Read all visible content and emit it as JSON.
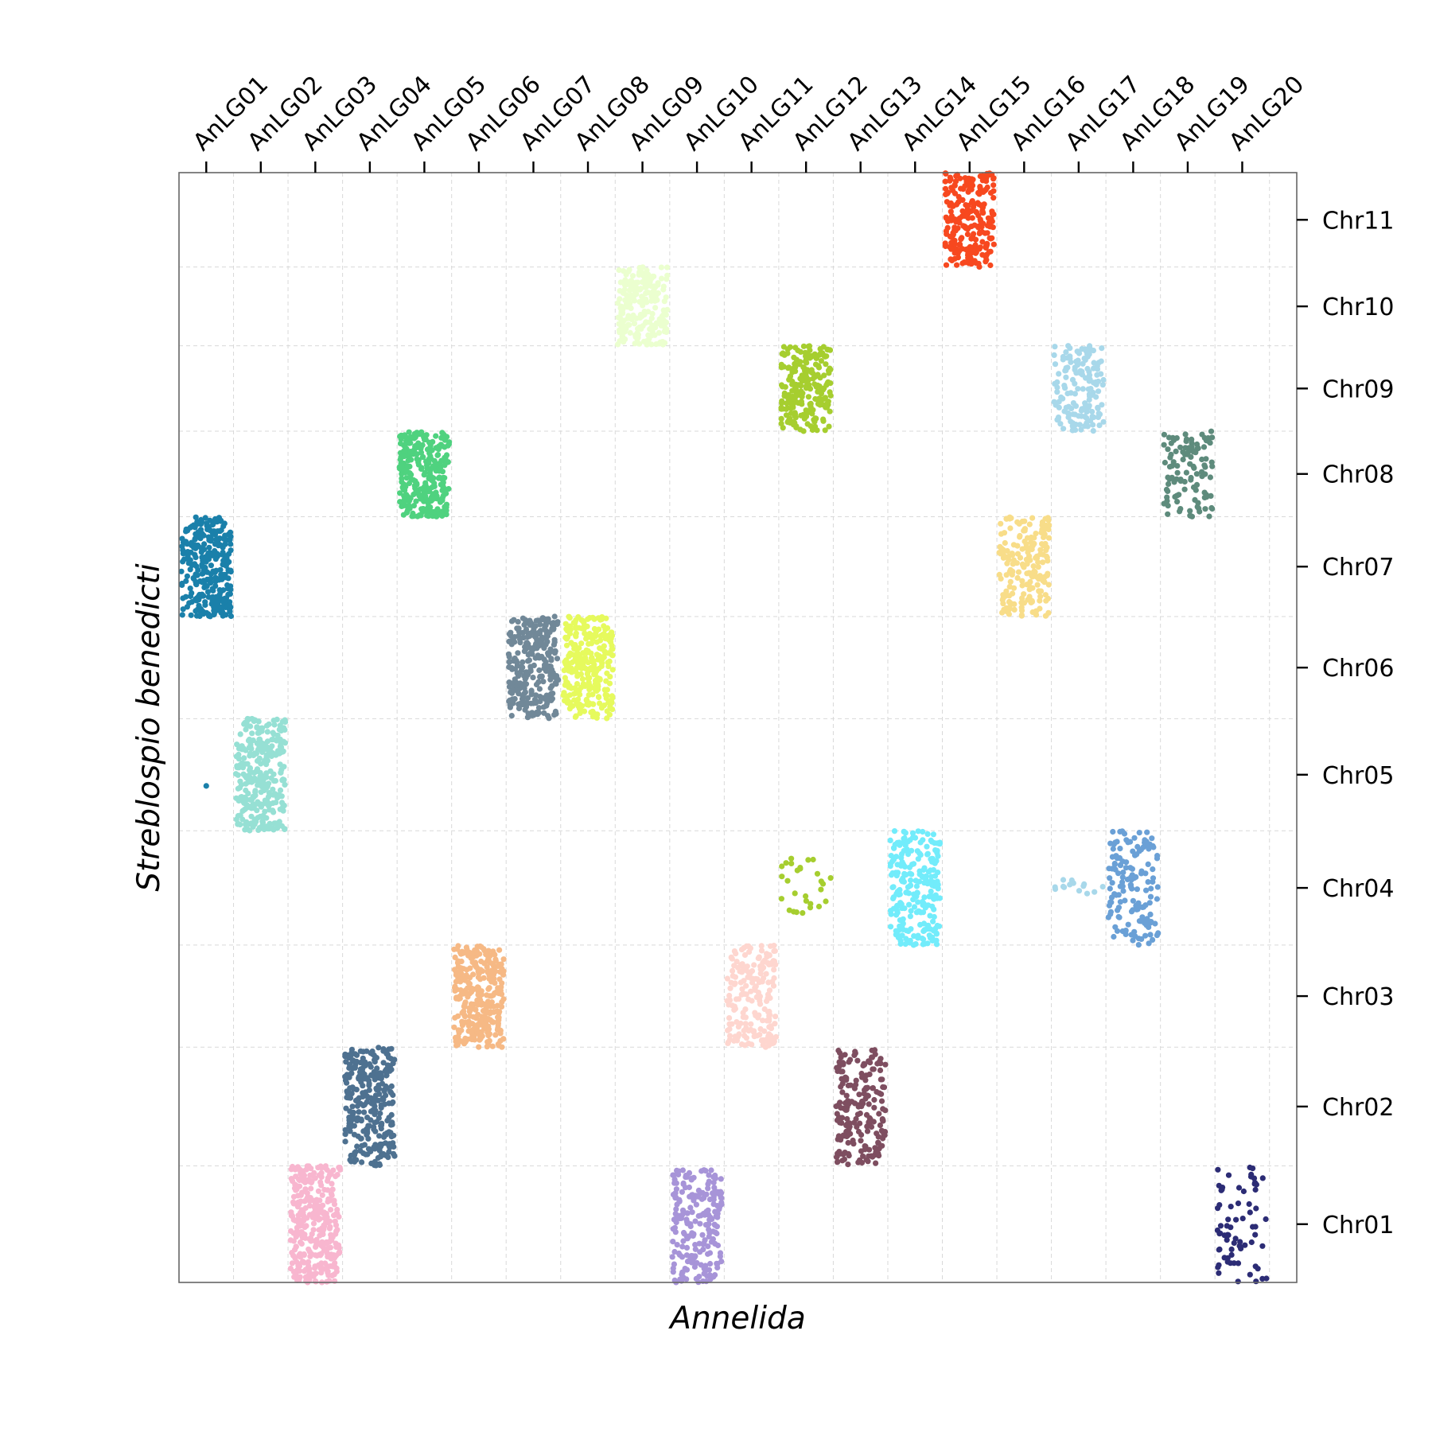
{
  "chart_data": {
    "type": "scatter",
    "title": "",
    "xlabel": "Annelida",
    "ylabel": "Streblospio benedicti",
    "x_axis_position": "top",
    "y_axis_position": "right",
    "grid": true,
    "legend": "none",
    "x_categories": [
      "AnLG01",
      "AnLG02",
      "AnLG03",
      "AnLG04",
      "AnLG05",
      "AnLG06",
      "AnLG07",
      "AnLG08",
      "AnLG09",
      "AnLG10",
      "AnLG11",
      "AnLG12",
      "AnLG13",
      "AnLG14",
      "AnLG15",
      "AnLG16",
      "AnLG17",
      "AnLG18",
      "AnLG19",
      "AnLG20"
    ],
    "y_categories": [
      {
        "name": "Chr01",
        "start": 0,
        "end": 105
      },
      {
        "name": "Chr02",
        "start": 105,
        "end": 212
      },
      {
        "name": "Chr03",
        "start": 212,
        "end": 304
      },
      {
        "name": "Chr04",
        "start": 304,
        "end": 407
      },
      {
        "name": "Chr05",
        "start": 407,
        "end": 508
      },
      {
        "name": "Chr06",
        "start": 508,
        "end": 600
      },
      {
        "name": "Chr07",
        "start": 600,
        "end": 690
      },
      {
        "name": "Chr08",
        "start": 690,
        "end": 767
      },
      {
        "name": "Chr09",
        "start": 767,
        "end": 844
      },
      {
        "name": "Chr10",
        "start": 844,
        "end": 915
      },
      {
        "name": "Chr11",
        "start": 915,
        "end": 1000
      }
    ],
    "clusters": [
      {
        "x": "AnLG01",
        "y": "Chr07",
        "y_from": 0.0,
        "y_to": 1.0,
        "color": "#1a80aa",
        "count": 300
      },
      {
        "x": "AnLG02",
        "y": "Chr05",
        "y_from": 0.0,
        "y_to": 1.0,
        "color": "#96e0d4",
        "count": 300
      },
      {
        "x": "AnLG03",
        "y": "Chr01",
        "y_from": 0.0,
        "y_to": 1.0,
        "color": "#f8b6cf",
        "count": 330
      },
      {
        "x": "AnLG04",
        "y": "Chr02",
        "y_from": 0.0,
        "y_to": 1.0,
        "color": "#4e7190",
        "count": 280
      },
      {
        "x": "AnLG05",
        "y": "Chr08",
        "y_from": 0.0,
        "y_to": 1.0,
        "color": "#4fd27f",
        "count": 300
      },
      {
        "x": "AnLG06",
        "y": "Chr03",
        "y_from": 0.0,
        "y_to": 1.0,
        "color": "#f6b985",
        "count": 300
      },
      {
        "x": "AnLG07",
        "y": "Chr06",
        "y_from": 0.0,
        "y_to": 1.0,
        "color": "#718898",
        "count": 280
      },
      {
        "x": "AnLG08",
        "y": "Chr06",
        "y_from": 0.0,
        "y_to": 1.0,
        "color": "#e6fa5d",
        "count": 280
      },
      {
        "x": "AnLG09",
        "y": "Chr10",
        "y_from": 0.0,
        "y_to": 1.0,
        "color": "#ebffcf",
        "count": 220
      },
      {
        "x": "AnLG10",
        "y": "Chr01",
        "y_from": 0.0,
        "y_to": 1.0,
        "color": "#a794d8",
        "count": 220
      },
      {
        "x": "AnLG11",
        "y": "Chr03",
        "y_from": 0.0,
        "y_to": 1.0,
        "color": "#fed6cf",
        "count": 190
      },
      {
        "x": "AnLG12",
        "y": "Chr09",
        "y_from": 0.0,
        "y_to": 1.0,
        "color": "#a6ce2f",
        "count": 230
      },
      {
        "x": "AnLG12",
        "y": "Chr04",
        "y_from": 0.28,
        "y_to": 0.78,
        "color": "#a6ce2f",
        "count": 28
      },
      {
        "x": "AnLG13",
        "y": "Chr02",
        "y_from": 0.0,
        "y_to": 1.0,
        "color": "#7e4e60",
        "count": 200
      },
      {
        "x": "AnLG14",
        "y": "Chr04",
        "y_from": 0.0,
        "y_to": 1.0,
        "color": "#72ecfb",
        "count": 240
      },
      {
        "x": "AnLG15",
        "y": "Chr11",
        "y_from": 0.0,
        "y_to": 1.0,
        "color": "#f7481f",
        "count": 240
      },
      {
        "x": "AnLG16",
        "y": "Chr07",
        "y_from": 0.0,
        "y_to": 1.0,
        "color": "#f8dd89",
        "count": 190
      },
      {
        "x": "AnLG17",
        "y": "Chr09",
        "y_from": 0.0,
        "y_to": 1.0,
        "color": "#a8d8ea",
        "count": 150
      },
      {
        "x": "AnLG17",
        "y": "Chr04",
        "y_from": 0.44,
        "y_to": 0.58,
        "color": "#a8d8ea",
        "count": 14
      },
      {
        "x": "AnLG18",
        "y": "Chr04",
        "y_from": 0.0,
        "y_to": 1.0,
        "color": "#6aa0d6",
        "count": 150
      },
      {
        "x": "AnLG19",
        "y": "Chr08",
        "y_from": 0.0,
        "y_to": 1.0,
        "color": "#5e8b7c",
        "count": 110
      },
      {
        "x": "AnLG20",
        "y": "Chr01",
        "y_from": 0.0,
        "y_to": 1.0,
        "color": "#2c2c75",
        "count": 70
      }
    ],
    "outliers": [
      {
        "x": "AnLG01",
        "y": "Chr05",
        "y_pos": 0.4,
        "color": "#1a80aa"
      }
    ]
  }
}
